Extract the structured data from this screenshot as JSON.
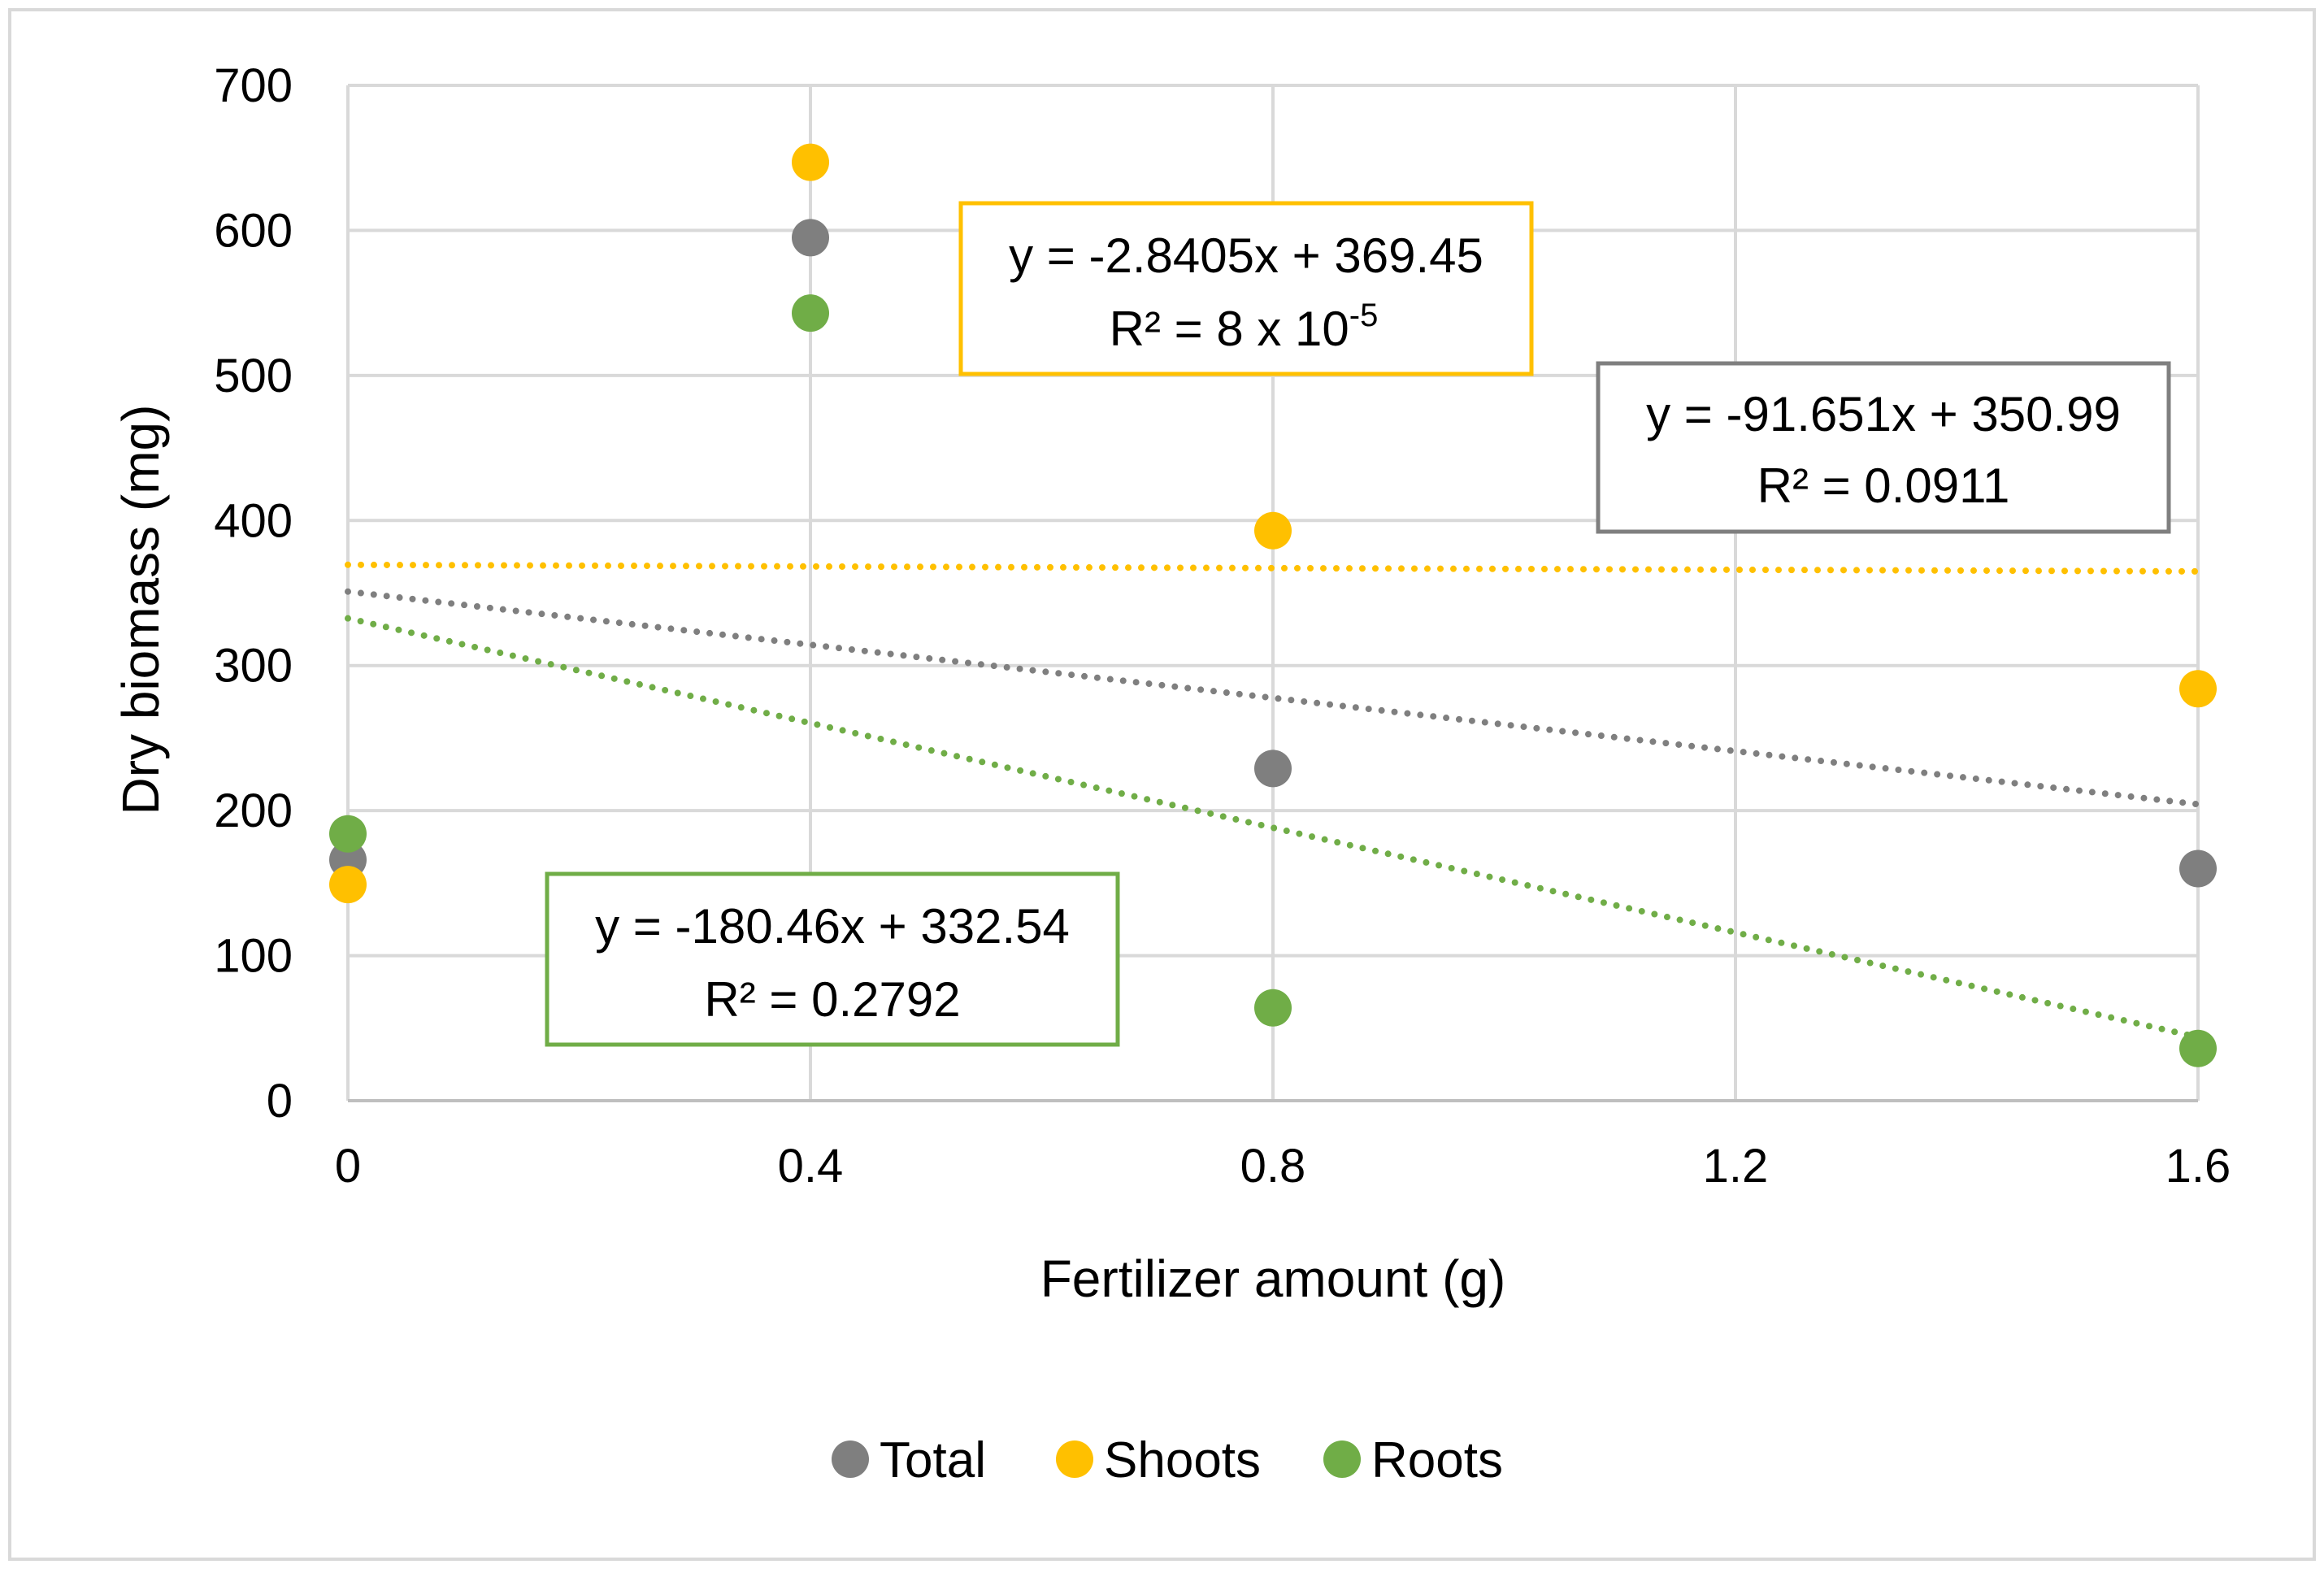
{
  "chart_data": {
    "type": "scatter",
    "title": "",
    "xlabel": "Fertilizer amount (g)",
    "ylabel": "Dry biomass (mg)",
    "xlim": [
      0,
      1.6
    ],
    "ylim": [
      0,
      700
    ],
    "x_ticks": [
      0,
      0.4,
      0.8,
      1.2,
      1.6
    ],
    "y_ticks": [
      0,
      100,
      200,
      300,
      400,
      500,
      600,
      700
    ],
    "x_tick_labels": [
      "0",
      "0.4",
      "0.8",
      "1.2",
      "1.6"
    ],
    "y_tick_labels": [
      "0",
      "100",
      "200",
      "300",
      "400",
      "500",
      "600",
      "700"
    ],
    "grid": true,
    "legend_position": "bottom",
    "series": [
      {
        "name": "Total",
        "color": "#7f7f7f",
        "x": [
          0,
          0.4,
          0.8,
          1.6
        ],
        "values": [
          166,
          595,
          229,
          160
        ],
        "trendline": {
          "slope": -91.651,
          "intercept": 350.99
        },
        "equation": "y = -91.651x + 350.99",
        "r2_label": "R² = 0.0911"
      },
      {
        "name": "Shoots",
        "color": "#ffc000",
        "x": [
          0,
          0.4,
          0.8,
          1.6
        ],
        "values": [
          149,
          647,
          393,
          284
        ],
        "trendline": {
          "slope": -2.8405,
          "intercept": 369.45
        },
        "equation": "y = -2.8405x + 369.45",
        "r2_label": "R² = 8 x 10",
        "r2_exponent": "-5"
      },
      {
        "name": "Roots",
        "color": "#70ad47",
        "x": [
          0,
          0.4,
          0.8,
          1.6
        ],
        "values": [
          184,
          543,
          64,
          36
        ],
        "trendline": {
          "slope": -180.46,
          "intercept": 332.54
        },
        "equation": "y = -180.46x + 332.54",
        "r2_label": "R² = 0.2792"
      }
    ]
  }
}
